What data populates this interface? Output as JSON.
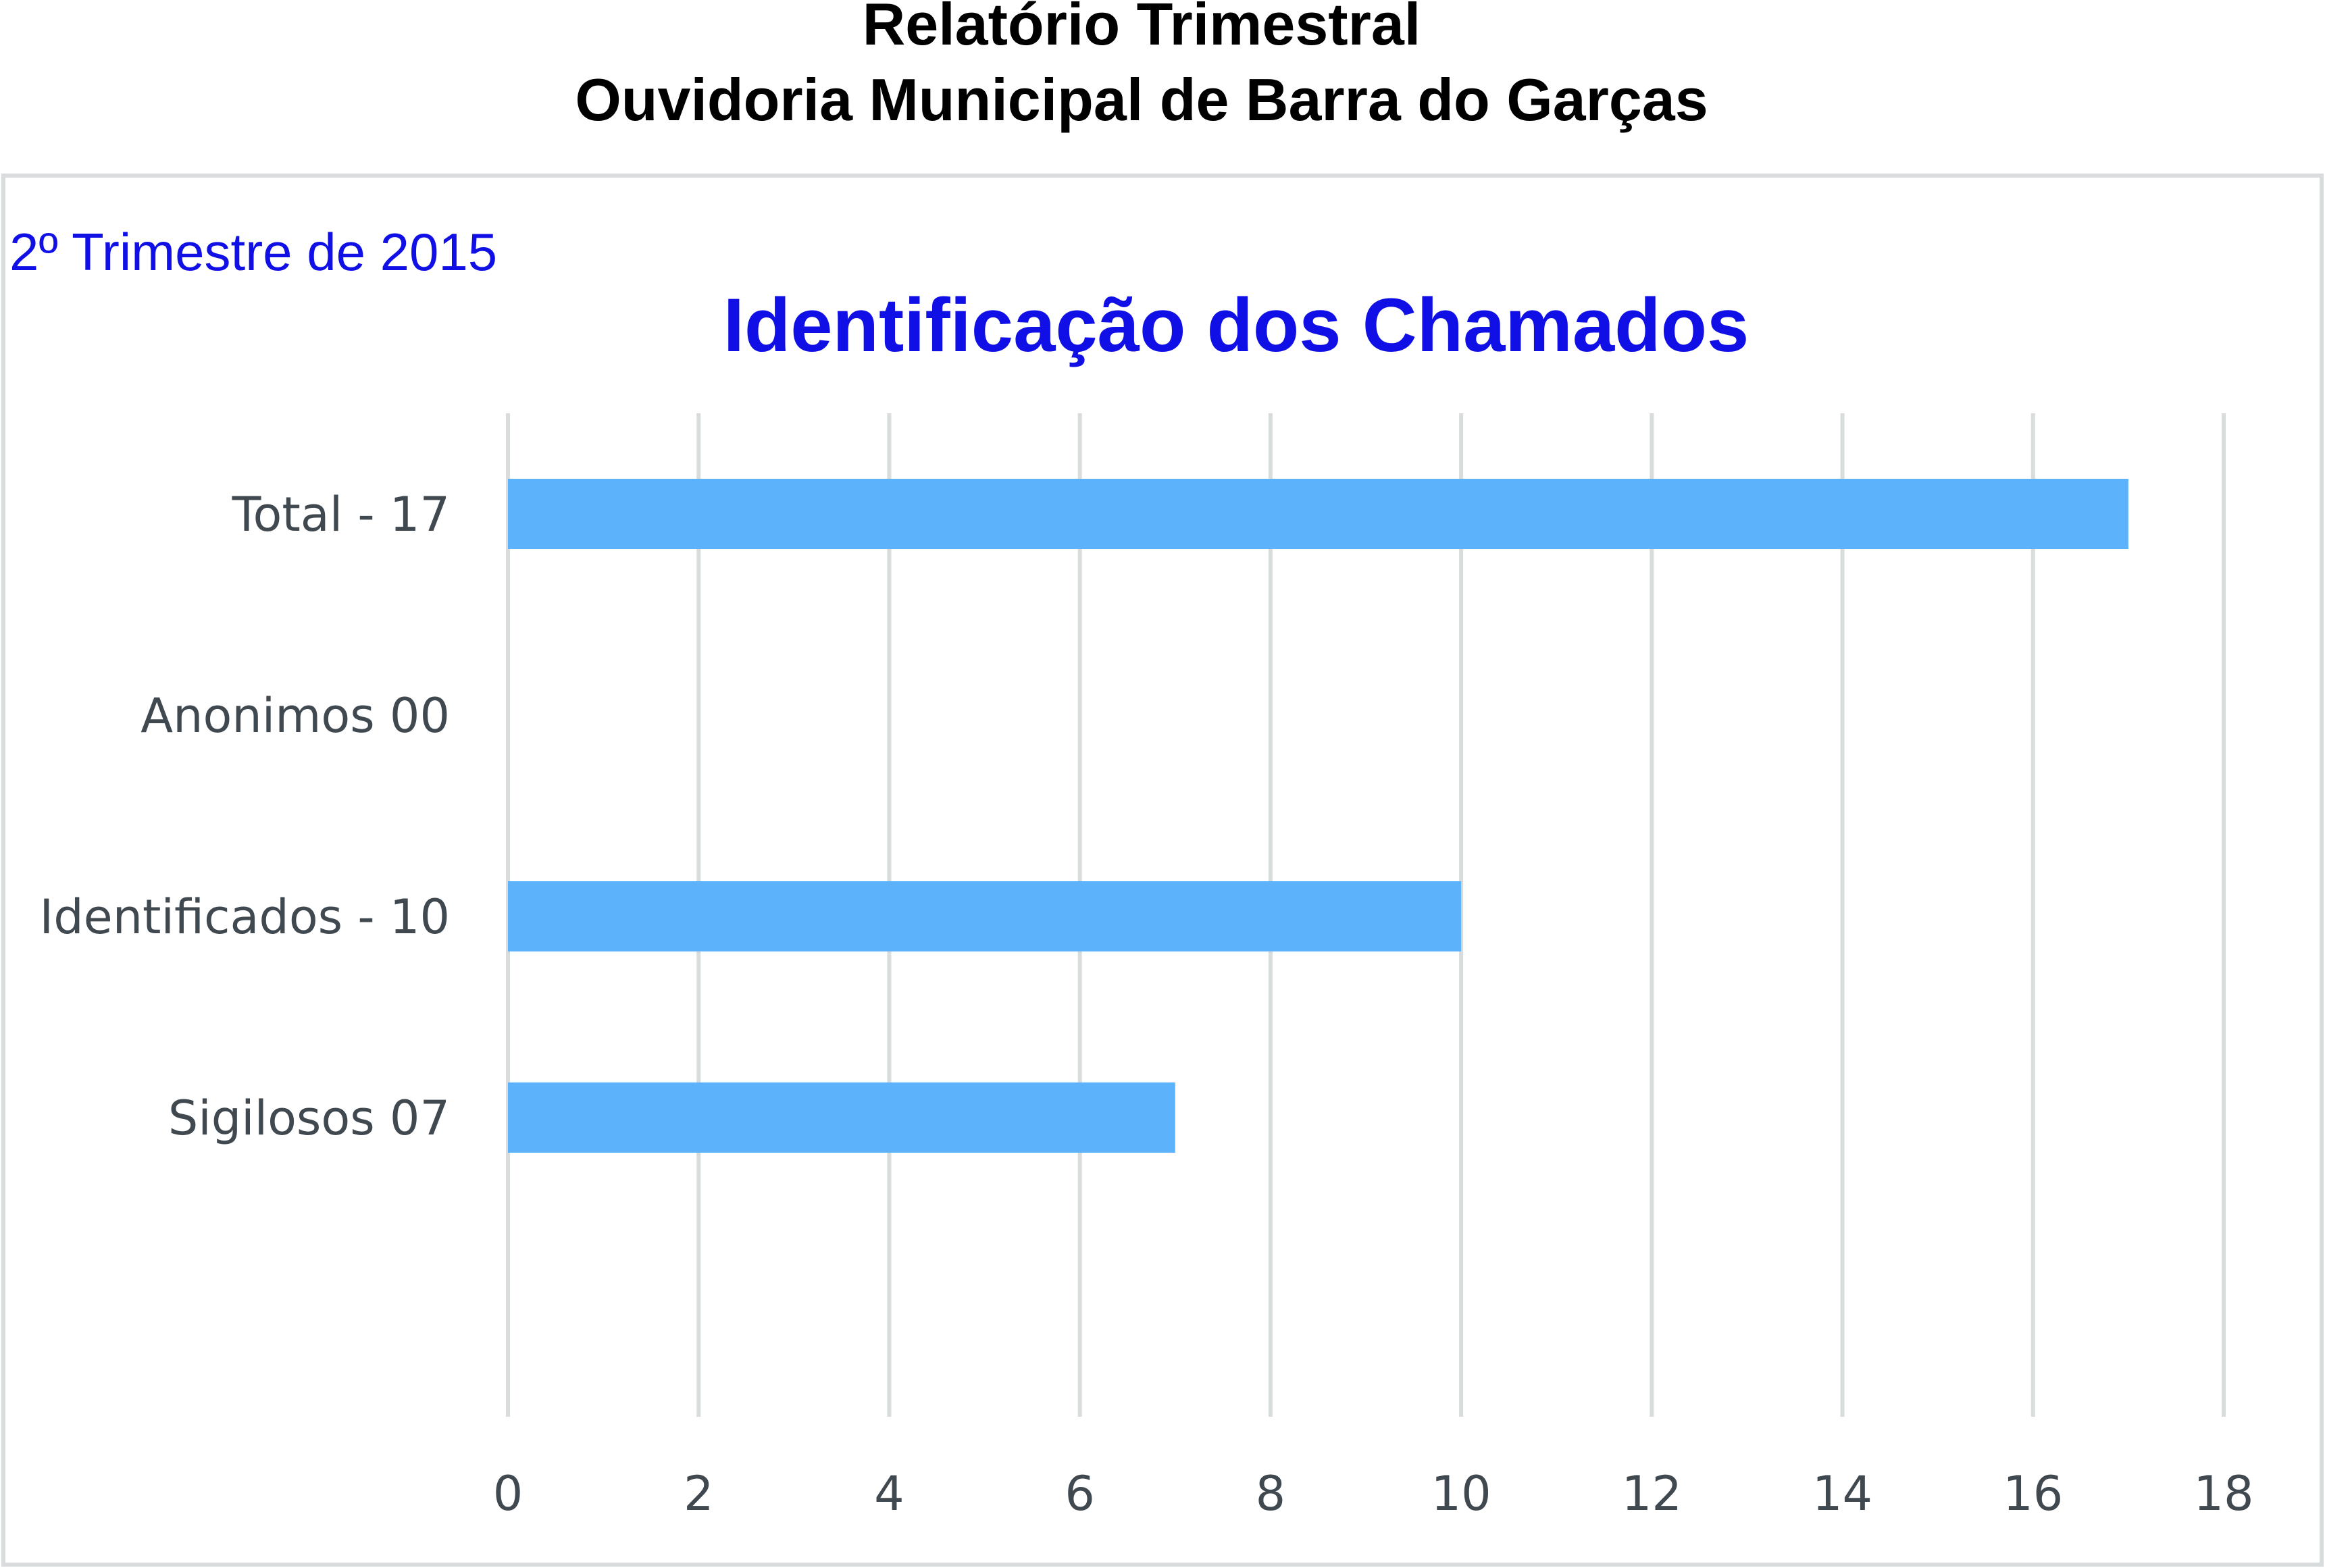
{
  "header": {
    "line1": "Relatório Trimestral",
    "line2": "Ouvidoria Municipal de Barra do Garças"
  },
  "subtitle": "2º Trimestre de 2015",
  "chart_data": {
    "type": "bar",
    "orientation": "horizontal",
    "title": "Identificação dos Chamados",
    "categories": [
      "Total - 17",
      "Anonimos 00",
      "Identificados - 10",
      "Sigilosos 07"
    ],
    "values": [
      17,
      0,
      10,
      7
    ],
    "xlim": [
      0,
      18
    ],
    "xticks": [
      0,
      2,
      4,
      6,
      8,
      10,
      12,
      14,
      16,
      18
    ],
    "xlabel": "",
    "ylabel": "",
    "grid": "vertical",
    "legend": "none",
    "bar_color": "#5cb3fb",
    "grid_color": "#d9dcdc",
    "frame_color": "#d8dcdc"
  }
}
